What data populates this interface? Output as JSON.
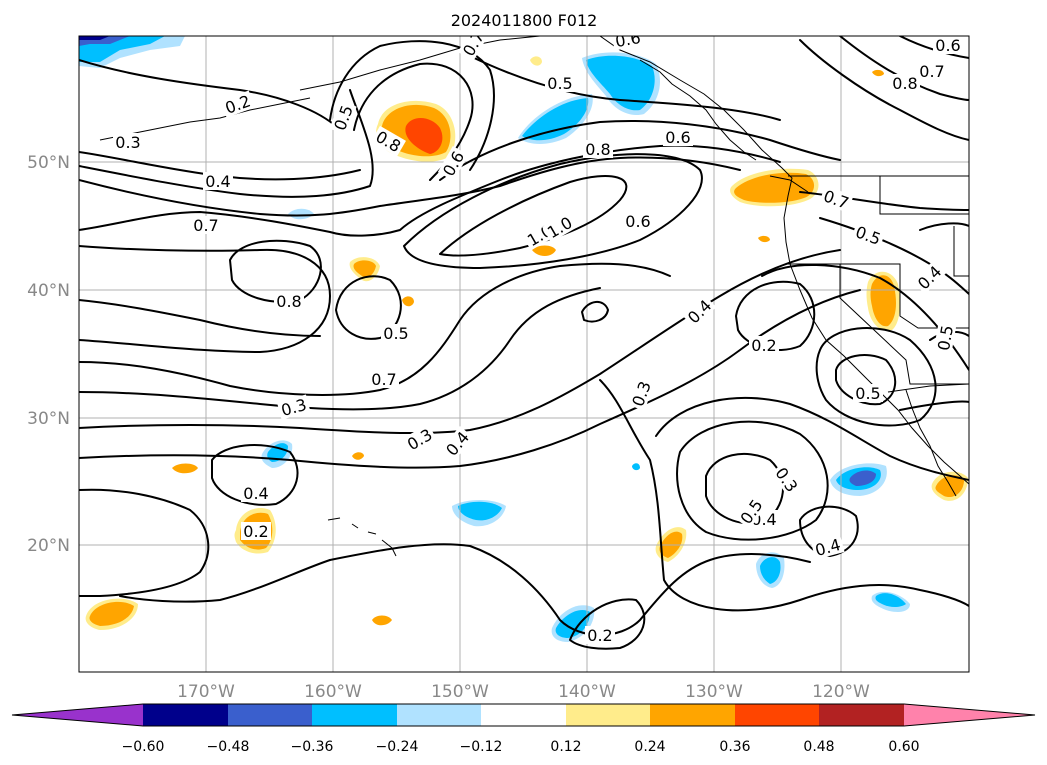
{
  "title": "2024011800 F012",
  "map": {
    "lon_labels": [
      "170°W",
      "160°W",
      "150°W",
      "140°W",
      "130°W",
      "120°W"
    ],
    "lat_labels": [
      "50°N",
      "40°N",
      "30°N",
      "20°N"
    ]
  },
  "colorbar": {
    "ticks": [
      "−0.60",
      "−0.48",
      "−0.36",
      "−0.24",
      "−0.12",
      "0.12",
      "0.24",
      "0.36",
      "0.48",
      "0.60"
    ],
    "colors": [
      "#9932cc",
      "#00008b",
      "#3a5fcd",
      "#00bfff",
      "#b0e2ff",
      "#ffffff",
      "#ffec8b",
      "#ffa500",
      "#ff4500",
      "#b22222",
      "#ff82ab"
    ]
  },
  "contour_labels": [
    "0.3",
    "0.2",
    "0.5",
    "0.7",
    "0.5",
    "0.6",
    "0.8",
    "0.6",
    "0.8",
    "1.0",
    "0.8",
    "0.7",
    "0.6",
    "0.6",
    "0.4",
    "0.7",
    "1.0",
    "0.6",
    "0.7",
    "0.5",
    "0.4",
    "0.8",
    "0.5",
    "0.4",
    "0.2",
    "0.5",
    "0.7",
    "0.3",
    "0.3",
    "0.4",
    "0.3",
    "0.5",
    "0.4",
    "0.3",
    "0.4",
    "0.2",
    "0.4",
    "0.2",
    "0.5"
  ]
}
